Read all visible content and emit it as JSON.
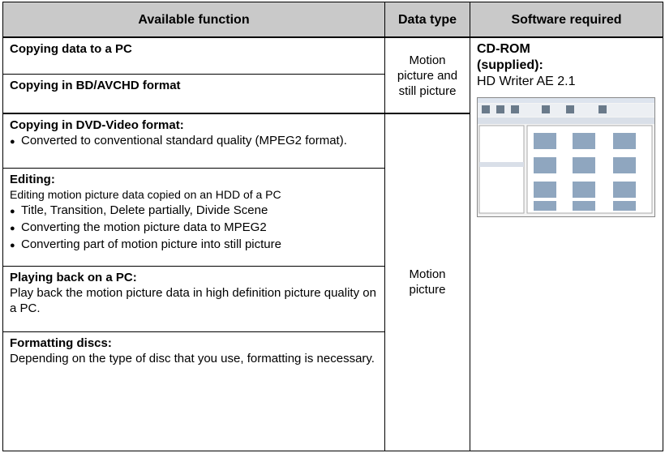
{
  "table": {
    "header": [
      "Available function",
      "Data type",
      "Software required"
    ],
    "rows": [
      {
        "title": "Copying data to a PC"
      },
      {
        "title": "Copying in BD/AVCHD format"
      },
      {
        "title": "Copying in DVD-Video format:",
        "bullets": [
          "Converted to conventional standard quality (MPEG2 format)."
        ]
      },
      {
        "title": "Editing:",
        "text": "Editing motion picture data copied on an HDD of a PC",
        "bullets": [
          "Title, Transition, Delete partially, Divide Scene",
          "Converting the motion picture data to MPEG2",
          "Converting part of motion picture into still picture"
        ]
      },
      {
        "title": "Playing back on a PC:",
        "text": "Play back the motion picture data in high definition picture quality on a PC."
      },
      {
        "title": "Formatting discs:",
        "text": "Depending on the type of disc that you use, formatting is necessary."
      }
    ],
    "data_types": [
      "Motion picture and still picture",
      "Motion picture"
    ],
    "software": {
      "title": "CD-ROM (supplied):",
      "text": "HD Writer AE 2.1"
    }
  }
}
